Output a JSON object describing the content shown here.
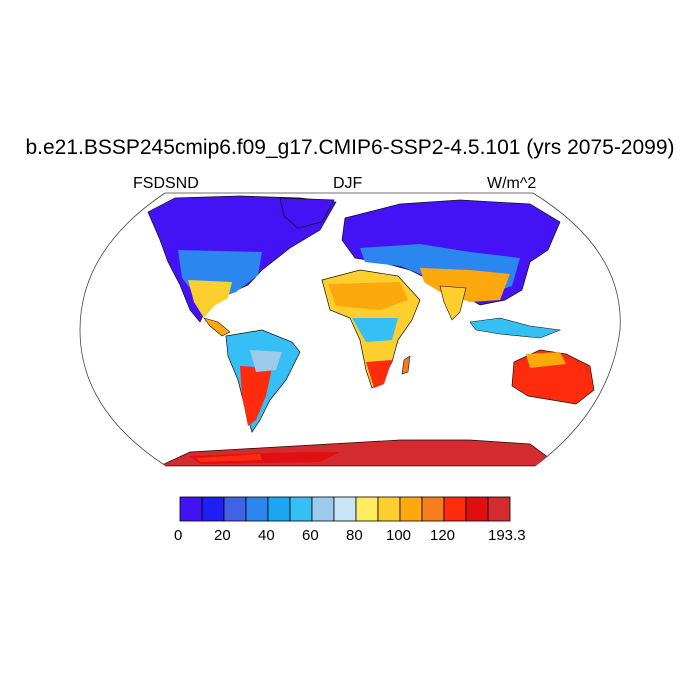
{
  "title": "b.e21.BSSP245cmip6.f09_g17.CMIP6-SSP2-4.5.101 (yrs 2075-2099)",
  "subtitle_left": "FSDSND",
  "subtitle_center": "DJF",
  "subtitle_right": "W/m^2",
  "colorbar": {
    "colors": [
      "#4312f5",
      "#1e1ef5",
      "#3f63e4",
      "#2b86ef",
      "#1ba6f2",
      "#36bff5",
      "#9ccbeb",
      "#c9e6f8",
      "#ffec60",
      "#fdcf2e",
      "#fda80d",
      "#f77e1c",
      "#fe2c0c",
      "#e10f12",
      "#d42b2f"
    ],
    "tick_labels": [
      "0",
      "20",
      "40",
      "60",
      "80",
      "100",
      "120",
      "193.3"
    ],
    "range": [
      0,
      193.3
    ]
  }
}
